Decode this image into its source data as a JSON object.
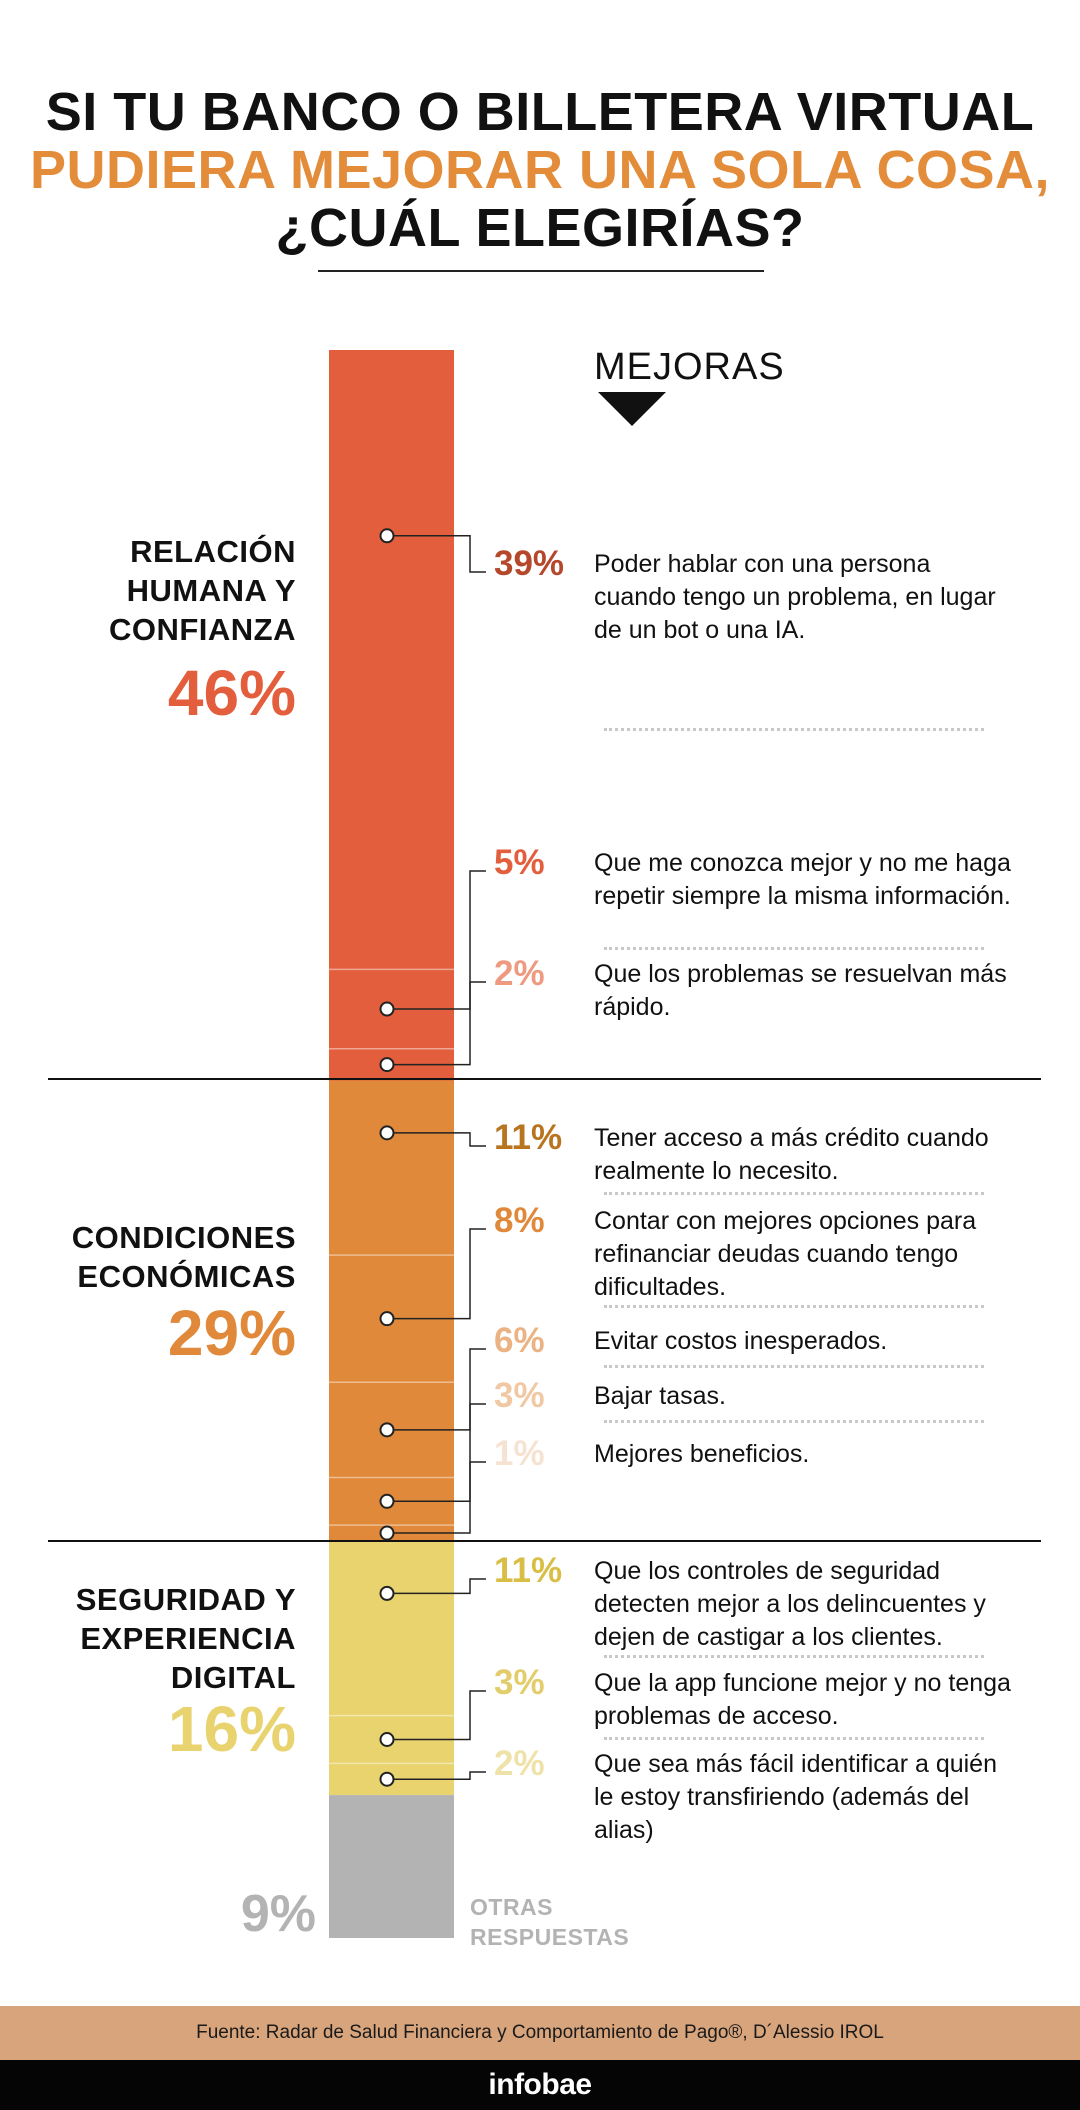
{
  "title": {
    "line1": "SI TU BANCO O BILLETERA VIRTUAL",
    "line2": "PUDIERA MEJORAR UNA SOLA COSA,",
    "line3": "¿CUÁL ELEGIRÍAS?"
  },
  "mejoras_label": "MEJORAS",
  "colors": {
    "relacion": "#e35e3c",
    "condiciones": "#e0893a",
    "seguridad": "#e8d36e",
    "otras": "#b3b3b3"
  },
  "chart_data": {
    "type": "bar",
    "categories": [
      {
        "name": "RELACIÓN HUMANA Y CONFIANZA",
        "label_lines": [
          "RELACIÓN",
          "HUMANA Y",
          "CONFIANZA"
        ],
        "value": 46,
        "value_label": "46%",
        "color": "#e35e3c",
        "items": [
          {
            "value": 39,
            "label": "39%",
            "pct_color": "#b5472a",
            "text": "Poder hablar con una persona cuando tengo un problema, en lugar de un bot o una IA."
          },
          {
            "value": 5,
            "label": "5%",
            "pct_color": "#e35e3c",
            "text": "Que me conozca mejor y no me haga repetir siempre la misma información."
          },
          {
            "value": 2,
            "label": "2%",
            "pct_color": "#ee9a80",
            "text": "Que los problemas se resuelvan más rápido."
          }
        ]
      },
      {
        "name": "CONDICIONES ECONÓMICAS",
        "label_lines": [
          "CONDICIONES",
          "ECONÓMICAS"
        ],
        "value": 29,
        "value_label": "29%",
        "color": "#e0893a",
        "items": [
          {
            "value": 11,
            "label": "11%",
            "pct_color": "#b8741f",
            "text": "Tener acceso a más crédito cuando realmente lo necesito."
          },
          {
            "value": 8,
            "label": "8%",
            "pct_color": "#e0893a",
            "text": "Contar con mejores opciones para refinanciar deudas cuando tengo dificultades."
          },
          {
            "value": 6,
            "label": "6%",
            "pct_color": "#ebb283",
            "text": "Evitar costos inesperados."
          },
          {
            "value": 3,
            "label": "3%",
            "pct_color": "#f0c8a4",
            "text": "Bajar tasas."
          },
          {
            "value": 1,
            "label": "1%",
            "pct_color": "#f6e2d0",
            "text": "Mejores beneficios."
          }
        ]
      },
      {
        "name": "SEGURIDAD Y EXPERIENCIA DIGITAL",
        "label_lines": [
          "SEGURIDAD Y",
          "EXPERIENCIA",
          "DIGITAL"
        ],
        "value": 16,
        "value_label": "16%",
        "color": "#e8d36e",
        "items": [
          {
            "value": 11,
            "label": "11%",
            "pct_color": "#d9be45",
            "text": "Que los controles de seguridad detecten mejor a los delincuentes y dejen de castigar a los clientes."
          },
          {
            "value": 3,
            "label": "3%",
            "pct_color": "#e3cc6a",
            "text": "Que la app funcione mejor y no tenga problemas de acceso."
          },
          {
            "value": 2,
            "label": "2%",
            "pct_color": "#efe2a8",
            "text": "Que sea más fácil identificar a quién le estoy transfiriendo (además del alias)"
          }
        ]
      },
      {
        "name": "OTRAS RESPUESTAS",
        "label_lines": [
          "OTRAS",
          "RESPUESTAS"
        ],
        "value": 9,
        "value_label": "9%",
        "color": "#b3b3b3",
        "items": []
      }
    ]
  },
  "source": "Fuente: Radar de Salud Financiera y Comportamiento de Pago®,  D´Alessio IROL",
  "brand": "infobae"
}
